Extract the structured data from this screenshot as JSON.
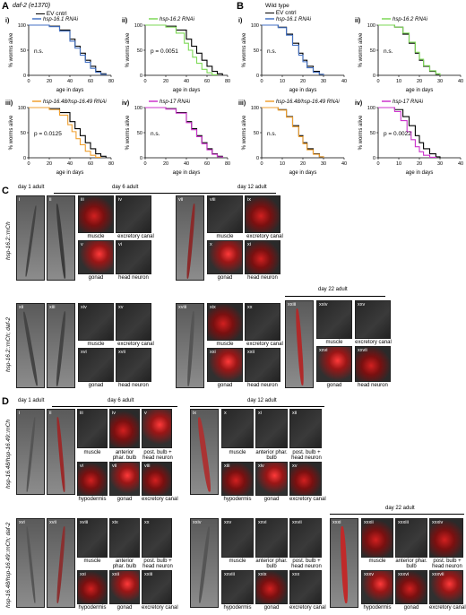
{
  "panelA": {
    "letter": "A",
    "header": "daf-2 (e1370)",
    "legend_ctrl": "EV cntrl",
    "plots": [
      {
        "roman": "i)",
        "rnai": "hsp-16.1 RNAi",
        "color": "#4472c4",
        "stat": "n.s."
      },
      {
        "roman": "ii)",
        "rnai": "hsp-16.2 RNAi",
        "color": "#7ed957",
        "stat": "p = 0.0051"
      },
      {
        "roman": "iii)",
        "rnai": "hsp-16.48/hsp-16.49 RNAi",
        "color": "#f0a030",
        "stat": "p = 0.0125"
      },
      {
        "roman": "iv)",
        "rnai": "hsp-17 RNAi",
        "color": "#cc33cc",
        "stat": "n.s."
      }
    ],
    "xlabel": "age in days",
    "ylabel": "% worms alive",
    "xticks": [
      "0",
      "20",
      "40",
      "60",
      "80"
    ],
    "yticks": [
      "0",
      "50",
      "100"
    ]
  },
  "panelB": {
    "letter": "B",
    "header": "Wild type",
    "legend_ctrl": "EV cntrl",
    "plots": [
      {
        "roman": "i)",
        "rnai": "hsp-16.1 RNAi",
        "color": "#4472c4",
        "stat": "n.s."
      },
      {
        "roman": "ii)",
        "rnai": "hsp-16.2 RNAi",
        "color": "#7ed957",
        "stat": "n.s."
      },
      {
        "roman": "iii)",
        "rnai": "hsp-16.48/hsp-16.49 RNAi",
        "color": "#f0a030",
        "stat": "n.s."
      },
      {
        "roman": "iv)",
        "rnai": "hsp-17 RNAi",
        "color": "#cc33cc",
        "stat": "p = 0.0022"
      }
    ],
    "xlabel": "age in days",
    "ylabel": "% worms alive",
    "xticks": [
      "0",
      "10",
      "20",
      "30",
      "40"
    ],
    "yticks": [
      "0",
      "50",
      "100"
    ]
  },
  "chart_data": [
    {
      "type": "line",
      "title": "",
      "xlabel": "age in days",
      "ylabel": "% worms alive",
      "xlim": [
        0,
        80
      ],
      "ylim": [
        0,
        100
      ],
      "series": [
        {
          "name": "EV cntrl",
          "x": [
            0,
            20,
            30,
            40,
            45,
            50,
            55,
            60,
            65,
            70,
            75
          ],
          "y": [
            100,
            98,
            90,
            72,
            58,
            44,
            30,
            18,
            8,
            3,
            0
          ]
        },
        {
          "name": "hsp-16.1 RNAi",
          "x": [
            0,
            20,
            30,
            40,
            45,
            50,
            55,
            60,
            65,
            70,
            75
          ],
          "y": [
            100,
            97,
            88,
            68,
            54,
            40,
            26,
            14,
            6,
            2,
            0
          ]
        }
      ]
    },
    {
      "type": "line",
      "title": "",
      "xlabel": "age in days",
      "ylabel": "% worms alive",
      "xlim": [
        0,
        80
      ],
      "ylim": [
        0,
        100
      ],
      "series": [
        {
          "name": "EV cntrl",
          "x": [
            0,
            20,
            30,
            40,
            45,
            50,
            55,
            60,
            65,
            70,
            75
          ],
          "y": [
            100,
            98,
            90,
            72,
            58,
            44,
            30,
            18,
            8,
            3,
            0
          ]
        },
        {
          "name": "hsp-16.2 RNAi",
          "x": [
            0,
            20,
            30,
            38,
            42,
            46,
            50,
            55,
            60,
            65,
            70
          ],
          "y": [
            100,
            96,
            84,
            64,
            50,
            36,
            24,
            12,
            5,
            1,
            0
          ]
        }
      ]
    },
    {
      "type": "line",
      "title": "",
      "xlabel": "age in days",
      "ylabel": "% worms alive",
      "xlim": [
        0,
        80
      ],
      "ylim": [
        0,
        100
      ],
      "series": [
        {
          "name": "EV cntrl",
          "x": [
            0,
            20,
            30,
            40,
            45,
            50,
            55,
            60,
            65,
            70,
            75
          ],
          "y": [
            100,
            98,
            90,
            72,
            58,
            44,
            30,
            18,
            8,
            3,
            0
          ]
        },
        {
          "name": "hsp-16.48/hsp-16.49 RNAi",
          "x": [
            0,
            20,
            30,
            38,
            42,
            46,
            50,
            55,
            60,
            65,
            70
          ],
          "y": [
            100,
            96,
            85,
            66,
            52,
            38,
            26,
            13,
            5,
            1,
            0
          ]
        }
      ]
    },
    {
      "type": "line",
      "title": "",
      "xlabel": "age in days",
      "ylabel": "% worms alive",
      "xlim": [
        0,
        80
      ],
      "ylim": [
        0,
        100
      ],
      "series": [
        {
          "name": "EV cntrl",
          "x": [
            0,
            20,
            30,
            40,
            45,
            50,
            55,
            60,
            65,
            70,
            75
          ],
          "y": [
            100,
            98,
            90,
            72,
            58,
            44,
            30,
            18,
            8,
            3,
            0
          ]
        },
        {
          "name": "hsp-17 RNAi",
          "x": [
            0,
            20,
            30,
            40,
            45,
            50,
            55,
            60,
            65,
            70,
            75
          ],
          "y": [
            100,
            97,
            89,
            70,
            56,
            42,
            28,
            16,
            7,
            2,
            0
          ]
        }
      ]
    },
    {
      "type": "line",
      "title": "",
      "xlabel": "age in days",
      "ylabel": "% worms alive",
      "xlim": [
        0,
        40
      ],
      "ylim": [
        0,
        100
      ],
      "series": [
        {
          "name": "EV cntrl",
          "x": [
            0,
            8,
            12,
            15,
            18,
            20,
            22,
            25,
            28,
            30
          ],
          "y": [
            100,
            96,
            82,
            64,
            44,
            30,
            18,
            8,
            2,
            0
          ]
        },
        {
          "name": "hsp-16.1 RNAi",
          "x": [
            0,
            8,
            12,
            15,
            18,
            20,
            22,
            25,
            28,
            30
          ],
          "y": [
            100,
            95,
            80,
            60,
            40,
            27,
            15,
            6,
            2,
            0
          ]
        }
      ]
    },
    {
      "type": "line",
      "title": "",
      "xlabel": "age in days",
      "ylabel": "% worms alive",
      "xlim": [
        0,
        40
      ],
      "ylim": [
        0,
        100
      ],
      "series": [
        {
          "name": "EV cntrl",
          "x": [
            0,
            8,
            12,
            15,
            18,
            20,
            22,
            25,
            28,
            30
          ],
          "y": [
            100,
            96,
            82,
            64,
            44,
            30,
            18,
            8,
            2,
            0
          ]
        },
        {
          "name": "hsp-16.2 RNAi",
          "x": [
            0,
            8,
            12,
            15,
            18,
            20,
            22,
            25,
            28,
            30
          ],
          "y": [
            100,
            96,
            84,
            66,
            46,
            32,
            19,
            9,
            3,
            0
          ]
        }
      ]
    },
    {
      "type": "line",
      "title": "",
      "xlabel": "age in days",
      "ylabel": "% worms alive",
      "xlim": [
        0,
        40
      ],
      "ylim": [
        0,
        100
      ],
      "series": [
        {
          "name": "EV cntrl",
          "x": [
            0,
            8,
            12,
            15,
            18,
            20,
            22,
            25,
            28,
            30
          ],
          "y": [
            100,
            96,
            82,
            64,
            44,
            30,
            18,
            8,
            2,
            0
          ]
        },
        {
          "name": "hsp-16.48/hsp-16.49 RNAi",
          "x": [
            0,
            8,
            12,
            15,
            18,
            20,
            22,
            25,
            28,
            30
          ],
          "y": [
            100,
            95,
            81,
            62,
            42,
            28,
            16,
            7,
            2,
            0
          ]
        }
      ]
    },
    {
      "type": "line",
      "title": "",
      "xlabel": "age in days",
      "ylabel": "% worms alive",
      "xlim": [
        0,
        40
      ],
      "ylim": [
        0,
        100
      ],
      "series": [
        {
          "name": "EV cntrl",
          "x": [
            0,
            8,
            12,
            15,
            18,
            20,
            22,
            25,
            28,
            30
          ],
          "y": [
            100,
            96,
            82,
            64,
            44,
            30,
            18,
            8,
            2,
            0
          ]
        },
        {
          "name": "hsp-17 RNAi",
          "x": [
            0,
            8,
            11,
            14,
            16,
            18,
            20,
            22,
            25,
            28
          ],
          "y": [
            100,
            92,
            74,
            52,
            36,
            22,
            12,
            5,
            1,
            0
          ]
        }
      ]
    }
  ],
  "panelC": {
    "letter": "C",
    "row1_label": "hsp-16.2::mCh",
    "row2_label": "hsp-16.2::mCh; daf-2",
    "day1": "day 1 adult",
    "day6": "day 6 adult",
    "day12": "day 12 adult",
    "day22": "day 22 adult",
    "cap_muscle": "muscle",
    "cap_excretory": "excretory canal",
    "cap_gonad": "gonad",
    "cap_head": "head neuron",
    "nums_r1": [
      "i",
      "ii",
      "iii",
      "iv",
      "v",
      "vi",
      "vii",
      "viii",
      "ix",
      "x",
      "xi"
    ],
    "nums_r2": [
      "xii",
      "xiii",
      "xiv",
      "xv",
      "xvi",
      "xvii",
      "xviii",
      "xix",
      "xx",
      "xxi",
      "xxii",
      "xxiii",
      "xxiv",
      "xxv",
      "xxvi",
      "xxvii"
    ]
  },
  "panelD": {
    "letter": "D",
    "row1_label": "hsp-16.48/hsp-16.49::mCh",
    "row2_label": "hsp-16.48/hsp-16.49::mCh; daf-2",
    "day1": "day 1 adult",
    "day6": "day 6 adult",
    "day12": "day 12 adult",
    "day22": "day 22 adult",
    "cap_muscle": "muscle",
    "cap_ant": "anterior phar. bulb",
    "cap_post": "post. bulb + head neuron",
    "cap_hypo": "hypodermis",
    "cap_gonad": "gonad",
    "cap_excretory": "excretory canal",
    "nums_r1": [
      "i",
      "ii",
      "iii",
      "iv",
      "v",
      "vi",
      "vii",
      "viii",
      "ix",
      "x",
      "xi",
      "xii",
      "xiii",
      "xiv",
      "xv"
    ],
    "nums_r2": [
      "xvi",
      "xvii",
      "xviii",
      "xix",
      "xx",
      "xxi",
      "xxii",
      "xxiii",
      "xxiv",
      "xxv",
      "xxvi",
      "xxvii",
      "xxviii",
      "xxix",
      "xxx",
      "xxxi",
      "xxxii",
      "xxxiii",
      "xxxiv",
      "xxxv",
      "xxxvi",
      "xxxvii"
    ]
  }
}
